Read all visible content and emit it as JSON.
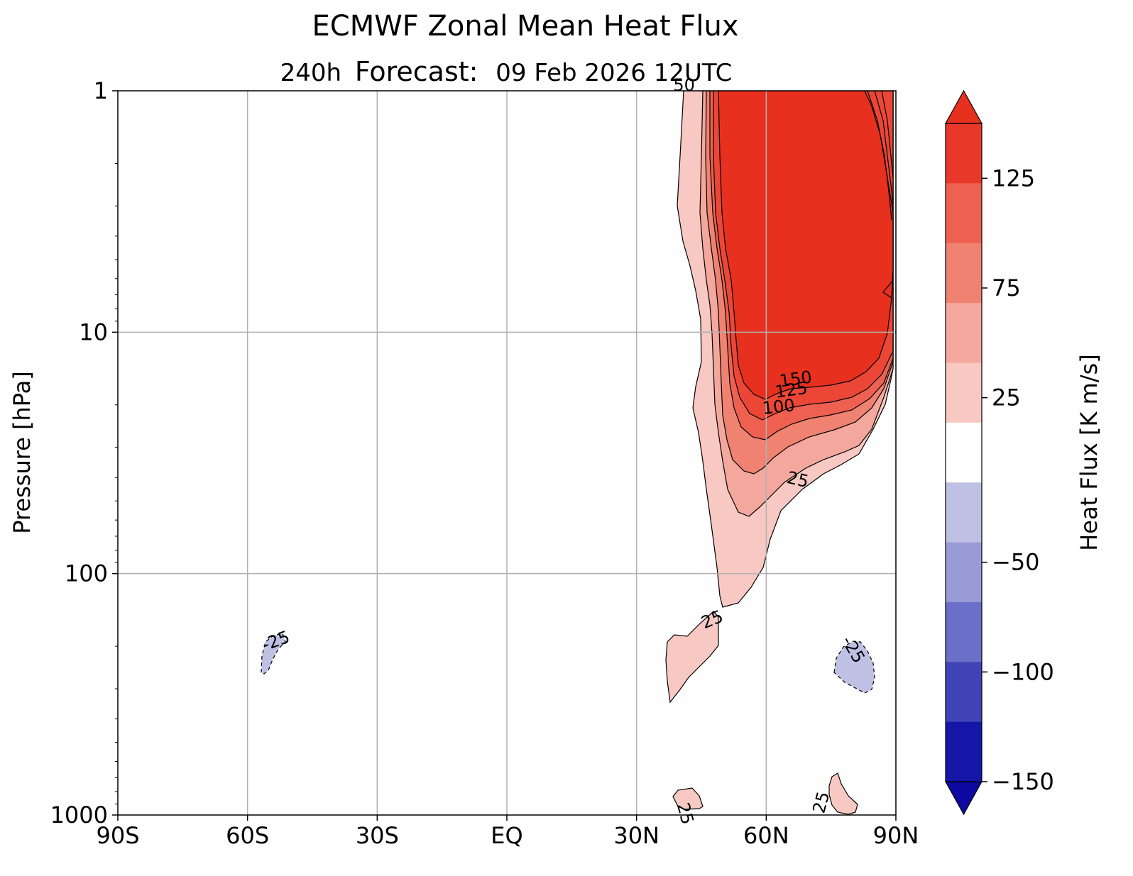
{
  "chart_data": {
    "type": "contour",
    "title": "ECMWF Zonal Mean Heat Flux",
    "subtitle": {
      "lead": "240h",
      "label": "Forecast:",
      "valid": "09 Feb 2026  12UTC"
    },
    "xlabel": "",
    "ylabel": "Pressure [hPa]",
    "x_ticks": [
      "90S",
      "60S",
      "30S",
      "EQ",
      "30N",
      "60N",
      "90N"
    ],
    "x_values": [
      -90,
      -60,
      -30,
      0,
      30,
      60,
      90
    ],
    "xlim": [
      -90,
      90
    ],
    "y_scale": "log",
    "y_ticks": [
      "1",
      "10",
      "100",
      "1000"
    ],
    "y_values": [
      1,
      10,
      100,
      1000
    ],
    "ylim": [
      1,
      1000
    ],
    "y_inverted": true,
    "grid": true,
    "colorbar": {
      "label": "Heat Flux [K  m/s]",
      "tick_labels": [
        "125",
        "75",
        "25",
        "−50",
        "−100",
        "−150"
      ],
      "tick_values": [
        125,
        75,
        25,
        -50,
        -100,
        -150
      ],
      "extend": "both",
      "levels": [
        150,
        125,
        100,
        75,
        50,
        25,
        -25,
        -50,
        -75,
        -100,
        -125,
        -150
      ],
      "colors": [
        "#e8382a",
        "#ee6150",
        "#f08272",
        "#f4a89d",
        "#f8c9c3",
        "#ffffff",
        "#bfc1e4",
        "#9a9bd6",
        "#6c6fc8",
        "#4044b7",
        "#1416a8"
      ],
      "over_color": "#e8301e",
      "under_color": "#0c0aa0"
    },
    "contour_labels": [
      {
        "text": "150",
        "lon": 67,
        "p": 16.5,
        "rot": -8
      },
      {
        "text": "125",
        "lon": 66,
        "p": 18.3,
        "rot": -8
      },
      {
        "text": "100",
        "lon": 63,
        "p": 21.5,
        "rot": -6
      },
      {
        "text": "25",
        "lon": 67,
        "p": 43,
        "rot": 13
      },
      {
        "text": "25",
        "lon": 48,
        "p": 163,
        "rot": -22
      },
      {
        "text": "-25",
        "lon": -53,
        "p": 200,
        "rot": -20
      },
      {
        "text": "-25",
        "lon": 79,
        "p": 212,
        "rot": 60
      },
      {
        "text": "25",
        "lon": 74,
        "p": 900,
        "rot": -75
      },
      {
        "text": "25",
        "lon": 40,
        "p": 1000,
        "rot": 75
      },
      {
        "text": "50",
        "lon": 41,
        "p": 1.0,
        "rot": 0
      }
    ],
    "note_regions": {
      "positive_jet": "Northern high latitudes: strong positive heat flux above 150 K m/s between about 50N and 88N from 1 to 17 hPa, decreasing to 25 K m/s near 130 hPa",
      "positive_lower": "Weak positive flux (25-50) near 40N-48N around 150-400 hPa and near the surface at 40N and 75N",
      "negative": "Weak negative flux (-25 to -50) near 57S around 200 hPa and near 80N around 250 hPa"
    }
  }
}
